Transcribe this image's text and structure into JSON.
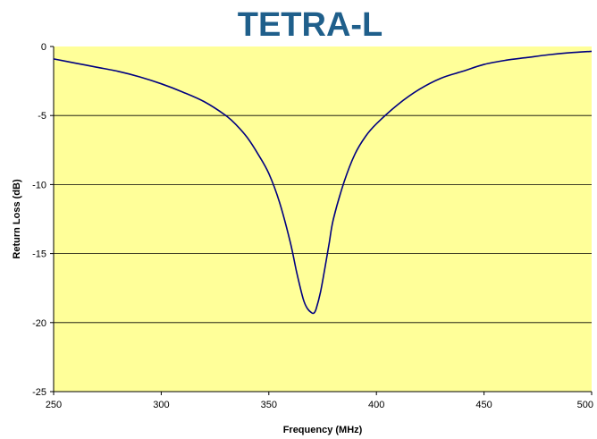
{
  "chart_data": {
    "type": "line",
    "title": "TETRA-L",
    "xlabel": "Frequency (MHz)",
    "ylabel": "Return Loss (dB)",
    "xlim": [
      250,
      500
    ],
    "ylim": [
      -25,
      0
    ],
    "xticks": [
      "250",
      "300",
      "350",
      "400",
      "450",
      "500"
    ],
    "yticks": [
      "0",
      "-5",
      "-10",
      "-15",
      "-20",
      "-25"
    ],
    "grid": true,
    "legend": "none",
    "colors": {
      "plot_background": "#ffff99",
      "line": "#000080",
      "title": "#1f5f8b",
      "gridline": "#000000"
    },
    "series": [
      {
        "x": [
          250,
          260,
          270,
          280,
          290,
          300,
          310,
          320,
          330,
          335,
          340,
          345,
          350,
          355,
          360,
          363,
          366,
          368,
          370,
          371,
          372,
          374,
          376,
          378,
          380,
          385,
          390,
          395,
          400,
          410,
          420,
          430,
          440,
          450,
          460,
          470,
          480,
          490,
          500
        ],
        "y": [
          -0.9,
          -1.2,
          -1.5,
          -1.8,
          -2.2,
          -2.7,
          -3.3,
          -4.0,
          -5.0,
          -5.7,
          -6.6,
          -7.8,
          -9.2,
          -11.3,
          -14.2,
          -16.4,
          -18.3,
          -19.0,
          -19.3,
          -19.3,
          -19.0,
          -17.8,
          -16.1,
          -14.3,
          -12.5,
          -9.8,
          -7.8,
          -6.5,
          -5.6,
          -4.2,
          -3.1,
          -2.3,
          -1.8,
          -1.3,
          -1.0,
          -0.8,
          -0.6,
          -0.45,
          -0.35
        ]
      }
    ]
  }
}
